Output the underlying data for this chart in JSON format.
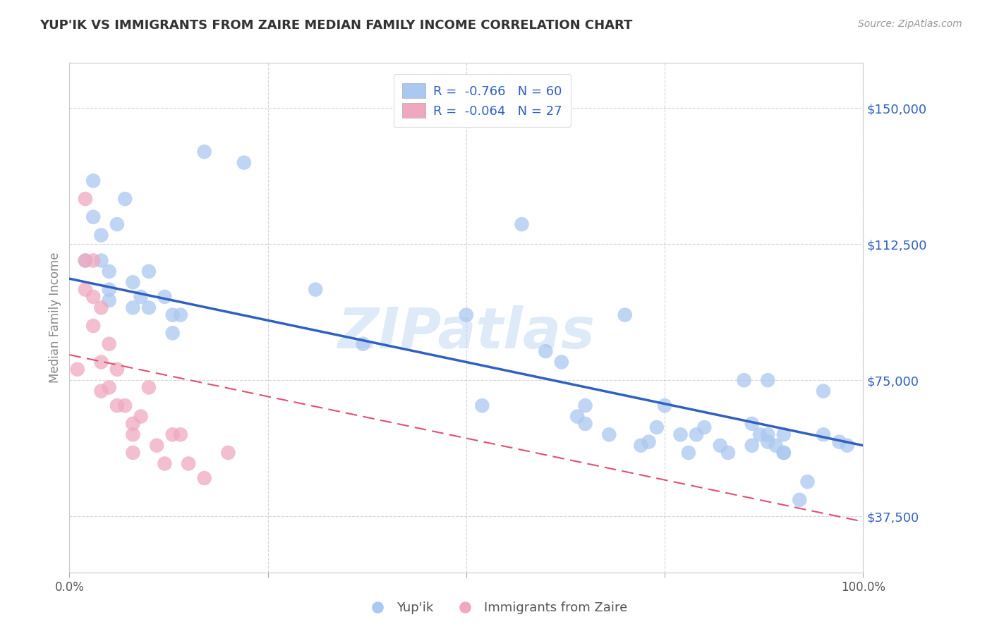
{
  "title": "YUP'IK VS IMMIGRANTS FROM ZAIRE MEDIAN FAMILY INCOME CORRELATION CHART",
  "source": "Source: ZipAtlas.com",
  "ylabel": "Median Family Income",
  "yticks": [
    37500,
    75000,
    112500,
    150000
  ],
  "ytick_labels": [
    "$37,500",
    "$75,000",
    "$112,500",
    "$150,000"
  ],
  "xlim": [
    0,
    1.0
  ],
  "ylim": [
    22000,
    162500
  ],
  "blue_color": "#aac8f0",
  "pink_color": "#f0a8c0",
  "blue_line_color": "#3060c0",
  "pink_line_color": "#e05070",
  "watermark_text": "ZIPatlas",
  "watermark_color": "#c8dcf4",
  "blue_scatter_x": [
    0.02,
    0.03,
    0.03,
    0.04,
    0.04,
    0.05,
    0.05,
    0.05,
    0.06,
    0.07,
    0.08,
    0.08,
    0.09,
    0.1,
    0.1,
    0.12,
    0.13,
    0.13,
    0.14,
    0.17,
    0.22,
    0.31,
    0.37,
    0.5,
    0.52,
    0.57,
    0.6,
    0.62,
    0.64,
    0.65,
    0.68,
    0.7,
    0.73,
    0.74,
    0.75,
    0.77,
    0.78,
    0.79,
    0.8,
    0.82,
    0.83,
    0.85,
    0.86,
    0.87,
    0.88,
    0.88,
    0.89,
    0.9,
    0.9,
    0.92,
    0.93,
    0.95,
    0.95,
    0.97,
    0.98,
    0.65,
    0.72,
    0.86,
    0.88,
    0.9
  ],
  "blue_scatter_y": [
    108000,
    130000,
    120000,
    115000,
    108000,
    105000,
    100000,
    97000,
    118000,
    125000,
    95000,
    102000,
    98000,
    105000,
    95000,
    98000,
    88000,
    93000,
    93000,
    138000,
    135000,
    100000,
    85000,
    93000,
    68000,
    118000,
    83000,
    80000,
    65000,
    68000,
    60000,
    93000,
    58000,
    62000,
    68000,
    60000,
    55000,
    60000,
    62000,
    57000,
    55000,
    75000,
    63000,
    60000,
    58000,
    75000,
    57000,
    60000,
    55000,
    42000,
    47000,
    60000,
    72000,
    58000,
    57000,
    63000,
    57000,
    57000,
    60000,
    55000
  ],
  "pink_scatter_x": [
    0.01,
    0.02,
    0.02,
    0.02,
    0.03,
    0.03,
    0.03,
    0.04,
    0.04,
    0.04,
    0.05,
    0.05,
    0.06,
    0.06,
    0.07,
    0.08,
    0.08,
    0.08,
    0.09,
    0.1,
    0.11,
    0.12,
    0.13,
    0.14,
    0.15,
    0.17,
    0.2
  ],
  "pink_scatter_y": [
    78000,
    125000,
    108000,
    100000,
    108000,
    98000,
    90000,
    95000,
    80000,
    72000,
    85000,
    73000,
    78000,
    68000,
    68000,
    63000,
    60000,
    55000,
    65000,
    73000,
    57000,
    52000,
    60000,
    60000,
    52000,
    48000,
    55000
  ],
  "blue_trend_x": [
    0.0,
    1.0
  ],
  "blue_trend_y": [
    103000,
    57000
  ],
  "pink_trend_x": [
    0.0,
    1.0
  ],
  "pink_trend_y": [
    82000,
    36000
  ],
  "xtick_positions": [
    0.0,
    0.25,
    0.5,
    0.75,
    1.0
  ],
  "xtick_labels": [
    "0.0%",
    "",
    "",
    "",
    "100.0%"
  ],
  "legend1_label": "R =  -0.766   N = 60",
  "legend2_label": "R =  -0.064   N = 27",
  "bottom_legend1": "Yup'ik",
  "bottom_legend2": "Immigrants from Zaire"
}
